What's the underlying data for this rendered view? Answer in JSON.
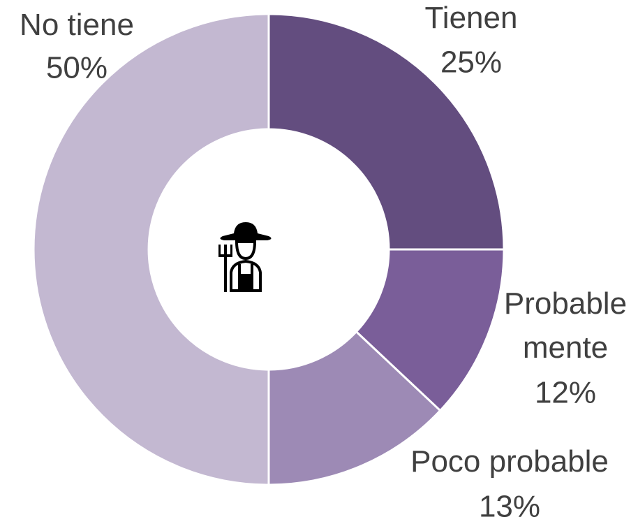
{
  "chart_data": {
    "type": "donut",
    "categories": [
      "Tienen",
      "Probable\nmente",
      "Poco probable",
      "No tiene"
    ],
    "values": [
      25,
      12,
      13,
      50
    ],
    "value_labels": [
      "25%",
      "12%",
      "13%",
      "50%"
    ],
    "colors": [
      "#634d7f",
      "#7a5e99",
      "#9d8ab5",
      "#c3b8d1"
    ]
  }
}
